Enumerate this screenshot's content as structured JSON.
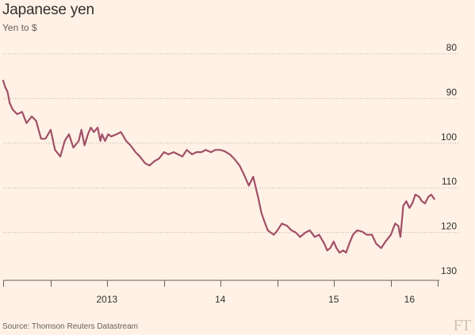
{
  "title": "Japanese yen",
  "subtitle": "Yen to $",
  "source": "Source: Thomson Reuters Datastream",
  "logo_text": "FT",
  "colors": {
    "background": "#fff1e5",
    "line": "#a14f68",
    "grid": "#b9b0a8",
    "axis": "#66605c",
    "text": "#33302e",
    "logo": "#cfc3b6"
  },
  "chart_data": {
    "type": "line",
    "title": "Japanese yen",
    "subtitle": "Yen to $",
    "xlabel": "",
    "ylabel": "",
    "ylim": [
      80,
      130
    ],
    "y_inverted": true,
    "y_ticks": [
      80,
      90,
      100,
      110,
      120,
      130
    ],
    "y_tick_labels": [
      "80",
      "90",
      "100",
      "110",
      "120",
      "130"
    ],
    "y_axis_side": "right",
    "x_range": [
      "2012-08-01",
      "2016-05-31"
    ],
    "x_tick_dates": [
      "2012-08-01",
      "2013-01-01",
      "2013-07-01",
      "2014-01-01",
      "2014-07-01",
      "2015-01-01",
      "2015-07-01",
      "2016-01-01",
      "2016-05-31"
    ],
    "x_tick_labels": [
      {
        "date": "2013-07-01",
        "label": "2013"
      },
      {
        "date": "2014-07-01",
        "label": "14"
      },
      {
        "date": "2015-07-01",
        "label": "15"
      },
      {
        "date": "2016-03-01",
        "label": "16"
      }
    ],
    "grid": true,
    "series": [
      {
        "x": [
          "2012-08-01",
          "2012-08-08",
          "2012-08-15",
          "2012-08-22",
          "2012-09-01",
          "2012-09-15",
          "2012-10-01",
          "2012-10-15",
          "2012-11-01",
          "2012-11-15",
          "2012-12-01",
          "2012-12-15",
          "2013-01-01",
          "2013-01-15",
          "2013-02-01",
          "2013-02-15",
          "2013-03-01",
          "2013-03-15",
          "2013-04-01",
          "2013-04-10",
          "2013-04-20",
          "2013-05-01",
          "2013-05-10",
          "2013-05-20",
          "2013-06-01",
          "2013-06-10",
          "2013-06-15",
          "2013-06-25",
          "2013-07-05",
          "2013-07-15",
          "2013-08-01",
          "2013-08-15",
          "2013-09-01",
          "2013-09-15",
          "2013-10-01",
          "2013-10-15",
          "2013-11-01",
          "2013-11-15",
          "2013-12-01",
          "2013-12-15",
          "2014-01-01",
          "2014-01-15",
          "2014-02-01",
          "2014-02-15",
          "2014-03-01",
          "2014-03-15",
          "2014-04-01",
          "2014-04-15",
          "2014-05-01",
          "2014-05-15",
          "2014-06-01",
          "2014-06-15",
          "2014-07-01",
          "2014-07-15",
          "2014-08-01",
          "2014-08-15",
          "2014-09-01",
          "2014-09-15",
          "2014-10-01",
          "2014-10-15",
          "2014-11-01",
          "2014-11-10",
          "2014-11-20",
          "2014-12-01",
          "2014-12-10",
          "2014-12-20",
          "2015-01-01",
          "2015-01-15",
          "2015-02-01",
          "2015-02-15",
          "2015-03-01",
          "2015-03-15",
          "2015-04-01",
          "2015-04-15",
          "2015-05-01",
          "2015-05-15",
          "2015-06-01",
          "2015-06-10",
          "2015-06-20",
          "2015-07-01",
          "2015-07-10",
          "2015-07-20",
          "2015-08-01",
          "2015-08-10",
          "2015-08-20",
          "2015-09-01",
          "2015-09-15",
          "2015-10-01",
          "2015-10-15",
          "2015-11-01",
          "2015-11-15",
          "2015-12-01",
          "2015-12-15",
          "2016-01-01",
          "2016-01-15",
          "2016-01-25",
          "2016-02-01",
          "2016-02-10",
          "2016-02-20",
          "2016-03-01",
          "2016-03-10",
          "2016-03-20",
          "2016-04-01",
          "2016-04-10",
          "2016-04-20",
          "2016-05-01",
          "2016-05-10",
          "2016-05-20"
        ],
        "y": [
          86.0,
          87.5,
          88.5,
          91.0,
          92.5,
          93.5,
          93.0,
          95.5,
          94.0,
          95.0,
          99.0,
          99.0,
          97.0,
          101.5,
          103.0,
          99.5,
          98.0,
          101.0,
          99.5,
          97.0,
          100.5,
          98.0,
          96.5,
          97.5,
          96.5,
          99.5,
          98.0,
          99.5,
          98.0,
          98.5,
          98.0,
          97.5,
          99.5,
          100.5,
          102.0,
          103.0,
          104.5,
          105.0,
          104.0,
          103.5,
          102.0,
          102.5,
          102.0,
          102.5,
          103.0,
          101.5,
          102.5,
          102.0,
          102.0,
          101.5,
          102.0,
          101.5,
          101.5,
          101.8,
          102.5,
          103.5,
          105.0,
          107.0,
          109.5,
          107.5,
          112.5,
          115.5,
          117.5,
          119.5,
          120.0,
          120.5,
          119.5,
          118.0,
          118.5,
          119.5,
          120.0,
          121.0,
          120.0,
          119.5,
          121.0,
          120.5,
          122.5,
          124.0,
          123.5,
          122.0,
          123.5,
          124.5,
          124.0,
          124.5,
          122.5,
          120.5,
          119.5,
          119.8,
          120.5,
          120.5,
          122.5,
          123.5,
          122.0,
          120.5,
          118.0,
          118.5,
          121.0,
          114.0,
          113.0,
          114.5,
          113.5,
          111.5,
          112.0,
          113.0,
          113.5,
          112.0,
          111.5,
          112.5
        ]
      }
    ]
  }
}
